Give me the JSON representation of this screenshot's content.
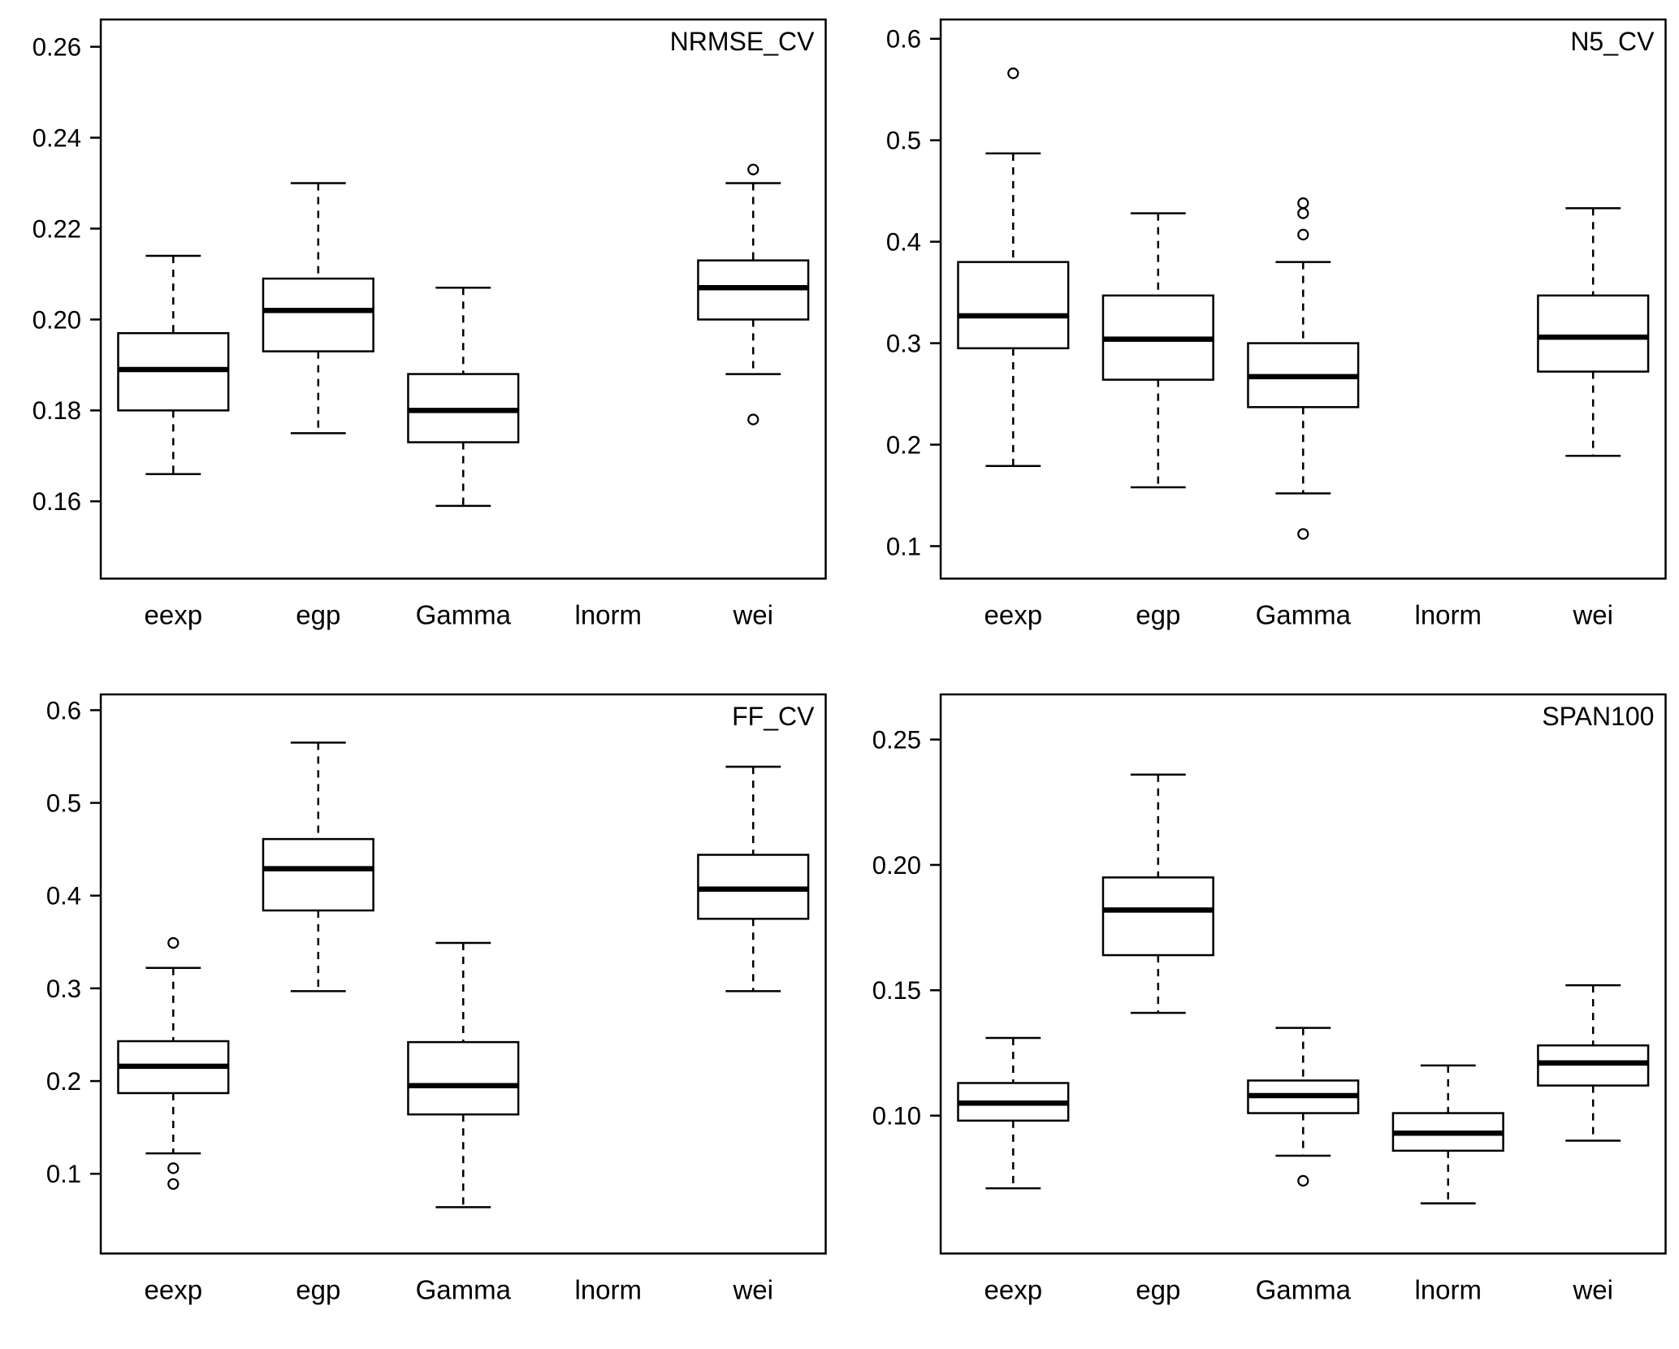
{
  "style": {
    "background": "#ffffff",
    "line_color": "#000000",
    "box_fill": "#ffffff"
  },
  "chart_data": [
    {
      "type": "boxplot",
      "title": "NRMSE_CV",
      "categories": [
        "eexp",
        "egp",
        "Gamma",
        "lnorm",
        "wei"
      ],
      "ylim": [
        0.143,
        0.266
      ],
      "grid": false,
      "legend": "none",
      "yticks": [
        {
          "value": 0.16,
          "label": "0.16"
        },
        {
          "value": 0.18,
          "label": "0.18"
        },
        {
          "value": 0.2,
          "label": "0.20"
        },
        {
          "value": 0.22,
          "label": "0.22"
        },
        {
          "value": 0.24,
          "label": "0.24"
        },
        {
          "value": 0.26,
          "label": "0.26"
        }
      ],
      "boxes": [
        {
          "category": "eexp",
          "whisker_low": 0.166,
          "q1": 0.18,
          "median": 0.189,
          "q3": 0.197,
          "whisker_high": 0.214,
          "outliers": []
        },
        {
          "category": "egp",
          "whisker_low": 0.175,
          "q1": 0.193,
          "median": 0.202,
          "q3": 0.209,
          "whisker_high": 0.23,
          "outliers": []
        },
        {
          "category": "Gamma",
          "whisker_low": 0.159,
          "q1": 0.173,
          "median": 0.18,
          "q3": 0.188,
          "whisker_high": 0.207,
          "outliers": []
        },
        {
          "category": "lnorm",
          "empty": true
        },
        {
          "category": "wei",
          "whisker_low": 0.188,
          "q1": 0.2,
          "median": 0.207,
          "q3": 0.213,
          "whisker_high": 0.23,
          "outliers": [
            0.178,
            0.233
          ]
        }
      ]
    },
    {
      "type": "boxplot",
      "title": "N5_CV",
      "categories": [
        "eexp",
        "egp",
        "Gamma",
        "lnorm",
        "wei"
      ],
      "ylim": [
        0.068,
        0.619
      ],
      "grid": false,
      "legend": "none",
      "yticks": [
        {
          "value": 0.1,
          "label": "0.1"
        },
        {
          "value": 0.2,
          "label": "0.2"
        },
        {
          "value": 0.3,
          "label": "0.3"
        },
        {
          "value": 0.4,
          "label": "0.4"
        },
        {
          "value": 0.5,
          "label": "0.5"
        },
        {
          "value": 0.6,
          "label": "0.6"
        }
      ],
      "boxes": [
        {
          "category": "eexp",
          "whisker_low": 0.179,
          "q1": 0.295,
          "median": 0.327,
          "q3": 0.38,
          "whisker_high": 0.487,
          "outliers": [
            0.566
          ]
        },
        {
          "category": "egp",
          "whisker_low": 0.158,
          "q1": 0.264,
          "median": 0.304,
          "q3": 0.347,
          "whisker_high": 0.428,
          "outliers": []
        },
        {
          "category": "Gamma",
          "whisker_low": 0.152,
          "q1": 0.237,
          "median": 0.267,
          "q3": 0.3,
          "whisker_high": 0.38,
          "outliers": [
            0.112,
            0.407,
            0.428,
            0.438
          ]
        },
        {
          "category": "lnorm",
          "empty": true
        },
        {
          "category": "wei",
          "whisker_low": 0.189,
          "q1": 0.272,
          "median": 0.306,
          "q3": 0.347,
          "whisker_high": 0.433,
          "outliers": []
        }
      ]
    },
    {
      "type": "boxplot",
      "title": "FF_CV",
      "categories": [
        "eexp",
        "egp",
        "Gamma",
        "lnorm",
        "wei"
      ],
      "ylim": [
        0.014,
        0.617
      ],
      "grid": false,
      "legend": "none",
      "yticks": [
        {
          "value": 0.1,
          "label": "0.1"
        },
        {
          "value": 0.2,
          "label": "0.2"
        },
        {
          "value": 0.3,
          "label": "0.3"
        },
        {
          "value": 0.4,
          "label": "0.4"
        },
        {
          "value": 0.5,
          "label": "0.5"
        },
        {
          "value": 0.6,
          "label": "0.6"
        }
      ],
      "boxes": [
        {
          "category": "eexp",
          "whisker_low": 0.122,
          "q1": 0.187,
          "median": 0.216,
          "q3": 0.243,
          "whisker_high": 0.322,
          "outliers": [
            0.089,
            0.106,
            0.349
          ]
        },
        {
          "category": "egp",
          "whisker_low": 0.297,
          "q1": 0.384,
          "median": 0.429,
          "q3": 0.461,
          "whisker_high": 0.565,
          "outliers": []
        },
        {
          "category": "Gamma",
          "whisker_low": 0.064,
          "q1": 0.164,
          "median": 0.195,
          "q3": 0.242,
          "whisker_high": 0.349,
          "outliers": []
        },
        {
          "category": "lnorm",
          "empty": true
        },
        {
          "category": "wei",
          "whisker_low": 0.297,
          "q1": 0.375,
          "median": 0.407,
          "q3": 0.444,
          "whisker_high": 0.539,
          "outliers": []
        }
      ]
    },
    {
      "type": "boxplot",
      "title": "SPAN100",
      "categories": [
        "eexp",
        "egp",
        "Gamma",
        "lnorm",
        "wei"
      ],
      "ylim": [
        0.045,
        0.268
      ],
      "grid": false,
      "legend": "none",
      "yticks": [
        {
          "value": 0.1,
          "label": "0.10"
        },
        {
          "value": 0.15,
          "label": "0.15"
        },
        {
          "value": 0.2,
          "label": "0.20"
        },
        {
          "value": 0.25,
          "label": "0.25"
        }
      ],
      "boxes": [
        {
          "category": "eexp",
          "whisker_low": 0.071,
          "q1": 0.098,
          "median": 0.105,
          "q3": 0.113,
          "whisker_high": 0.131,
          "outliers": []
        },
        {
          "category": "egp",
          "whisker_low": 0.141,
          "q1": 0.164,
          "median": 0.182,
          "q3": 0.195,
          "whisker_high": 0.236,
          "outliers": []
        },
        {
          "category": "Gamma",
          "whisker_low": 0.084,
          "q1": 0.101,
          "median": 0.108,
          "q3": 0.114,
          "whisker_high": 0.135,
          "outliers": [
            0.074
          ]
        },
        {
          "category": "lnorm",
          "whisker_low": 0.065,
          "q1": 0.086,
          "median": 0.093,
          "q3": 0.101,
          "whisker_high": 0.12,
          "outliers": []
        },
        {
          "category": "wei",
          "whisker_low": 0.09,
          "q1": 0.112,
          "median": 0.121,
          "q3": 0.128,
          "whisker_high": 0.152,
          "outliers": []
        }
      ]
    }
  ]
}
